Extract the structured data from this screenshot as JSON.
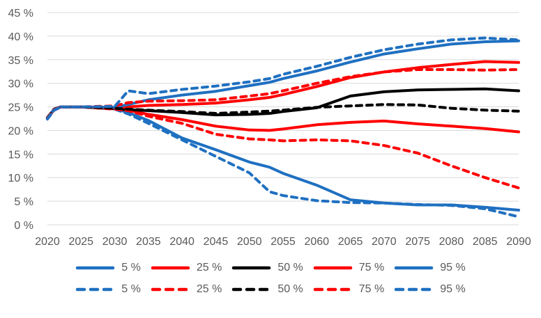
{
  "colors": {
    "blue": "#1F70C1",
    "red": "#FF0000",
    "black": "#000000",
    "grid": "#D9D9D9",
    "axis_text": "#595959",
    "background": "#FFFFFF"
  },
  "chart_data": {
    "type": "line",
    "title": "",
    "xlabel": "",
    "ylabel": "",
    "xlim": [
      2020,
      2090
    ],
    "ylim": [
      0,
      45
    ],
    "grid": "horizontal",
    "legend_position": "bottom",
    "x_ticks": [
      "2020",
      "2025",
      "2030",
      "2035",
      "2040",
      "2045",
      "2050",
      "2055",
      "2060",
      "2065",
      "2070",
      "2075",
      "2080",
      "2085",
      "2090"
    ],
    "x_tick_values": [
      2020,
      2025,
      2030,
      2035,
      2040,
      2045,
      2050,
      2055,
      2060,
      2065,
      2070,
      2075,
      2080,
      2085,
      2090
    ],
    "y_ticks": [
      "0 %",
      "5 %",
      "10 %",
      "15 %",
      "20 %",
      "25 %",
      "30 %",
      "35 %",
      "40 %",
      "45 %"
    ],
    "y_tick_values": [
      0,
      5,
      10,
      15,
      20,
      25,
      30,
      35,
      40,
      45
    ],
    "x": [
      2020,
      2021,
      2022,
      2025,
      2030,
      2032,
      2035,
      2040,
      2045,
      2050,
      2053,
      2055,
      2060,
      2065,
      2070,
      2075,
      2080,
      2085,
      2090
    ],
    "series": [
      {
        "name": "5 %",
        "style": "solid",
        "color": "#1F70C1",
        "values": [
          22.6,
          24.4,
          25.0,
          25.0,
          24.6,
          23.8,
          22.1,
          18.4,
          15.9,
          13.3,
          12.2,
          10.9,
          8.4,
          5.3,
          4.6,
          4.2,
          4.2,
          3.7,
          3.1
        ]
      },
      {
        "name": "25 %",
        "style": "solid",
        "color": "#FF0000",
        "values": [
          22.6,
          24.4,
          25.0,
          25.0,
          24.6,
          24.3,
          23.4,
          22.3,
          20.9,
          20.1,
          20.0,
          20.3,
          21.2,
          21.7,
          22.0,
          21.4,
          20.9,
          20.4,
          19.7
        ]
      },
      {
        "name": "50 %",
        "style": "solid",
        "color": "#000000",
        "values": [
          22.7,
          24.5,
          25.0,
          25.0,
          24.6,
          24.4,
          24.2,
          23.8,
          23.3,
          23.4,
          23.6,
          24.0,
          24.8,
          27.3,
          28.2,
          28.6,
          28.7,
          28.8,
          28.4
        ]
      },
      {
        "name": "75 %",
        "style": "solid",
        "color": "#FF0000",
        "values": [
          22.7,
          24.5,
          25.0,
          25.0,
          24.8,
          25.0,
          25.3,
          25.5,
          25.8,
          26.5,
          27.0,
          27.6,
          29.3,
          31.2,
          32.4,
          33.3,
          34.0,
          34.6,
          34.4
        ]
      },
      {
        "name": "95 %",
        "style": "solid",
        "color": "#1F70C1",
        "values": [
          22.7,
          24.5,
          25.0,
          25.0,
          24.9,
          25.5,
          26.5,
          27.5,
          28.3,
          29.5,
          30.2,
          31.0,
          32.6,
          34.5,
          36.2,
          37.3,
          38.3,
          38.8,
          39.0
        ]
      },
      {
        "name": "5 %",
        "style": "dashed",
        "color": "#1F70C1",
        "values": [
          22.4,
          24.3,
          25.0,
          25.0,
          24.5,
          23.5,
          21.5,
          18.0,
          14.5,
          11.0,
          7.0,
          6.2,
          5.1,
          4.7,
          4.6,
          4.3,
          4.1,
          3.4,
          1.7
        ]
      },
      {
        "name": "25 %",
        "style": "dashed",
        "color": "#FF0000",
        "values": [
          22.5,
          24.3,
          25.0,
          25.0,
          24.5,
          24.2,
          23.0,
          21.5,
          19.2,
          18.2,
          18.0,
          17.8,
          18.0,
          17.8,
          16.8,
          15.2,
          12.5,
          10.0,
          7.8
        ]
      },
      {
        "name": "50 %",
        "style": "dashed",
        "color": "#000000",
        "values": [
          22.7,
          24.5,
          25.0,
          25.0,
          24.7,
          24.5,
          24.3,
          24.0,
          23.6,
          23.9,
          24.1,
          24.3,
          24.9,
          25.2,
          25.5,
          25.4,
          24.7,
          24.3,
          24.1
        ]
      },
      {
        "name": "75 %",
        "style": "dashed",
        "color": "#FF0000",
        "values": [
          22.6,
          24.4,
          25.0,
          25.0,
          25.2,
          25.9,
          26.2,
          26.3,
          26.5,
          27.3,
          27.8,
          28.4,
          30.0,
          31.4,
          32.4,
          32.9,
          32.9,
          32.8,
          32.9
        ]
      },
      {
        "name": "95 %",
        "style": "dashed",
        "color": "#1F70C1",
        "values": [
          22.5,
          24.3,
          25.0,
          25.0,
          25.1,
          28.4,
          27.8,
          28.7,
          29.4,
          30.3,
          31.0,
          31.9,
          33.6,
          35.5,
          37.1,
          38.3,
          39.2,
          39.6,
          39.2
        ]
      }
    ],
    "legend": {
      "rows": [
        {
          "style": "solid",
          "entries": [
            {
              "label": "5 %",
              "color": "#1F70C1"
            },
            {
              "label": "25 %",
              "color": "#FF0000"
            },
            {
              "label": "50 %",
              "color": "#000000"
            },
            {
              "label": "75 %",
              "color": "#FF0000"
            },
            {
              "label": "95 %",
              "color": "#1F70C1"
            }
          ]
        },
        {
          "style": "dashed",
          "entries": [
            {
              "label": "5 %",
              "color": "#1F70C1"
            },
            {
              "label": "25 %",
              "color": "#FF0000"
            },
            {
              "label": "50 %",
              "color": "#000000"
            },
            {
              "label": "75 %",
              "color": "#FF0000"
            },
            {
              "label": "95 %",
              "color": "#1F70C1"
            }
          ]
        }
      ]
    }
  }
}
